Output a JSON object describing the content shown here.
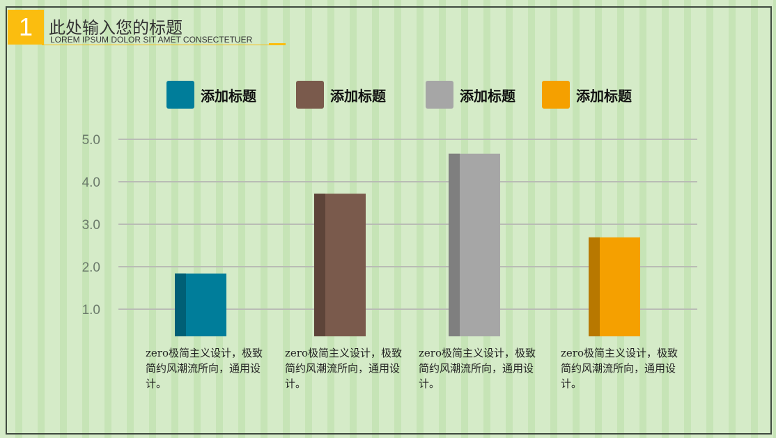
{
  "header": {
    "number": "1",
    "title": "此处输入您的标题",
    "subtitle": "LOREM IPSUM DOLOR SIT AMET CONSECTETUER"
  },
  "chart_data": {
    "type": "bar",
    "yticks": [
      "1.0",
      "2.0",
      "3.0",
      "4.0",
      "5.0"
    ],
    "ylim": [
      0,
      5
    ],
    "grid": true,
    "legend_position": "top",
    "series": [
      {
        "name": "添加标题",
        "value": 1.84,
        "color": "#007d9a",
        "shade": "#005f75"
      },
      {
        "name": "添加标题",
        "value": 3.72,
        "color": "#7a5a4c",
        "shade": "#5d4439"
      },
      {
        "name": "添加标题",
        "value": 4.66,
        "color": "#a6a6a6",
        "shade": "#7f7f7f"
      },
      {
        "name": "添加标题",
        "value": 2.69,
        "color": "#f5a000",
        "shade": "#b87800"
      }
    ],
    "captions": [
      "zero极简主义设计，极致简约风潮流所向，通用设计。",
      "zero极简主义设计，极致简约风潮流所向，通用设计。",
      "zero极简主义设计，极致简约风潮流所向，通用设计。",
      "zero极简主义设计，极致简约风潮流所向，通用设计。"
    ]
  }
}
